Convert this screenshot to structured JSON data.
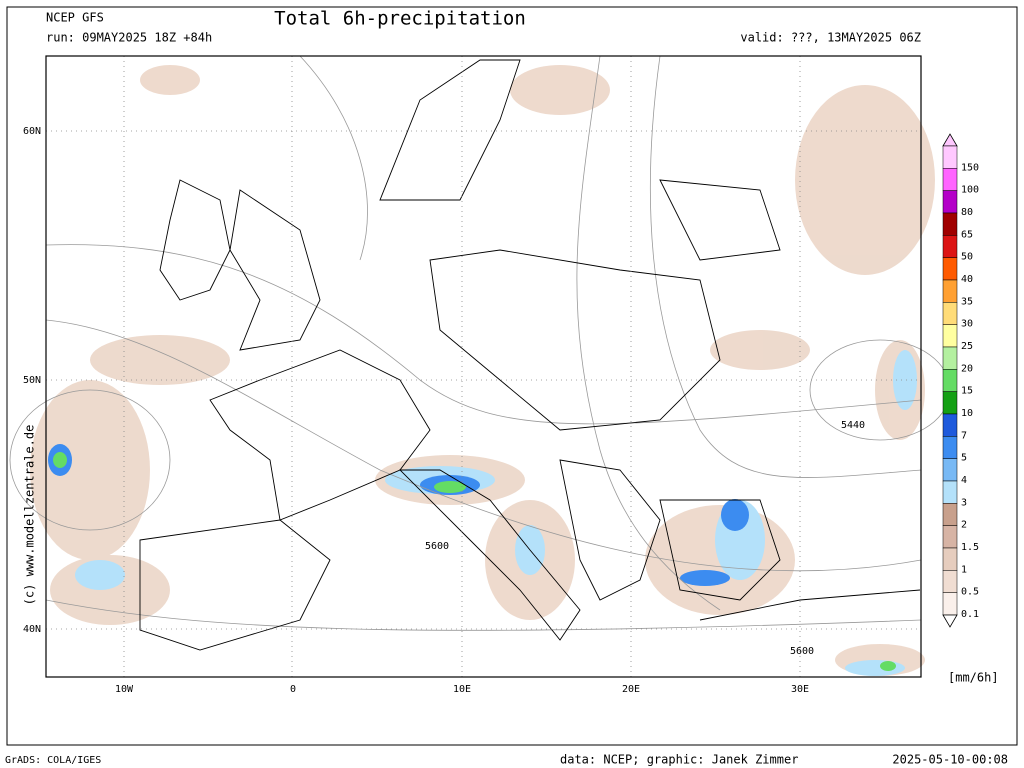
{
  "header": {
    "model": "NCEP GFS",
    "run": "run: 09MAY2025 18Z +84h",
    "title": "Total 6h-precipitation",
    "valid": "valid: ???, 13MAY2025 06Z"
  },
  "map": {
    "lat_labels": [
      "60N",
      "50N",
      "40N"
    ],
    "lon_labels": [
      "10W",
      "0",
      "10E",
      "20E",
      "30E"
    ],
    "contour_labels": [
      "5440",
      "5600",
      "5600"
    ],
    "watermark": "(c) www.modellzentrale.de"
  },
  "legend": {
    "unit": "[mm/6h]",
    "entries": [
      {
        "label": "150",
        "color": "#ffc8ff"
      },
      {
        "label": "100",
        "color": "#ff64ff"
      },
      {
        "label": "80",
        "color": "#b400c8"
      },
      {
        "label": "65",
        "color": "#a00000"
      },
      {
        "label": "50",
        "color": "#dc1414"
      },
      {
        "label": "40",
        "color": "#ff5a00"
      },
      {
        "label": "35",
        "color": "#ffa032"
      },
      {
        "label": "30",
        "color": "#ffdc78"
      },
      {
        "label": "25",
        "color": "#ffffa0"
      },
      {
        "label": "20",
        "color": "#b4f0a0"
      },
      {
        "label": "15",
        "color": "#64dc64"
      },
      {
        "label": "10",
        "color": "#14a014"
      },
      {
        "label": "7",
        "color": "#1e5adc"
      },
      {
        "label": "5",
        "color": "#3c8cf0"
      },
      {
        "label": "4",
        "color": "#78b9f5"
      },
      {
        "label": "3",
        "color": "#b4e1fa"
      },
      {
        "label": "2",
        "color": "#c8a08c"
      },
      {
        "label": "1.5",
        "color": "#d7b4a5"
      },
      {
        "label": "1",
        "color": "#e6cdbe"
      },
      {
        "label": "0.5",
        "color": "#f0ddd2"
      },
      {
        "label": "0.1",
        "color": "#faf0eb"
      }
    ]
  },
  "footer": {
    "software": "GrADS: COLA/IGES",
    "credit": "data: NCEP; graphic: Janek Zimmer",
    "timestamp": "2025-05-10-00:08"
  }
}
